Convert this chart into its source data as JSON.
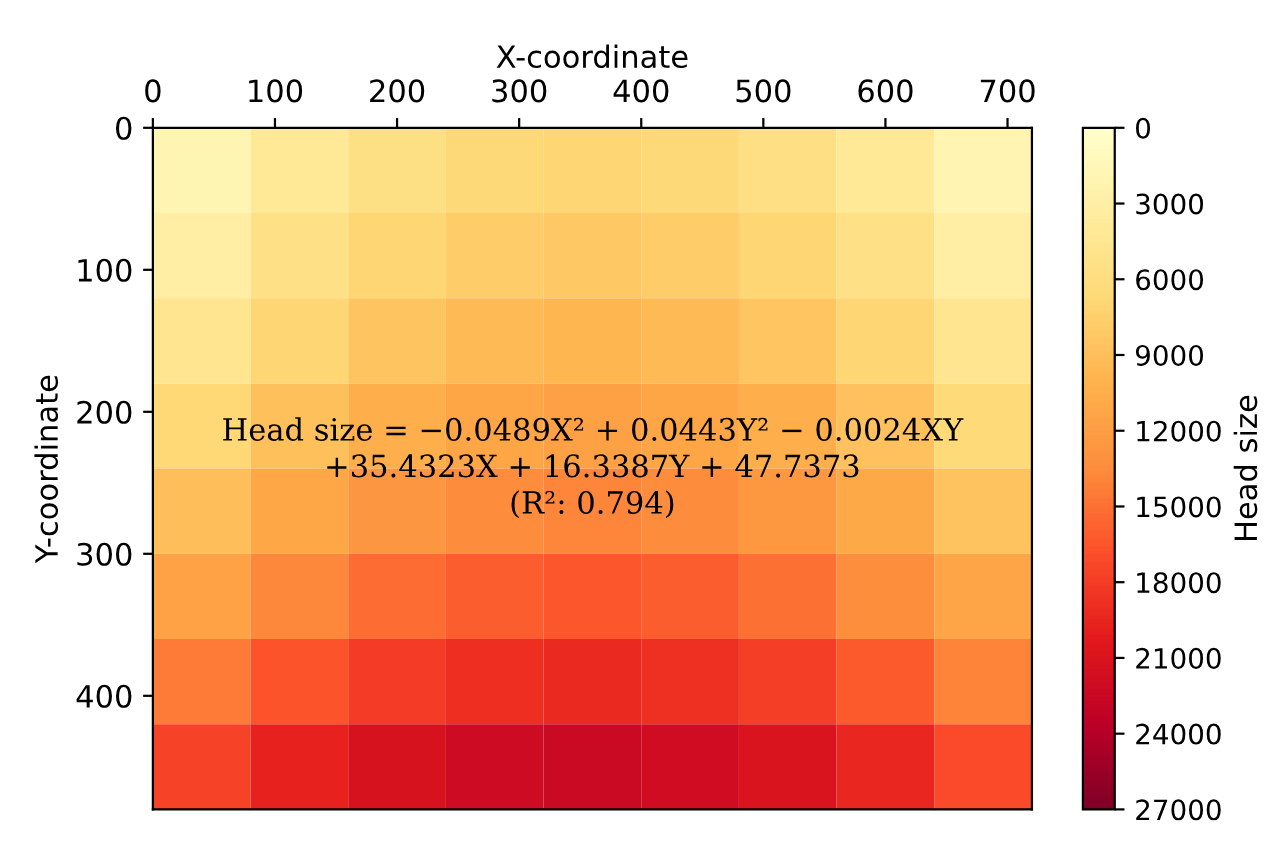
{
  "chart_data": {
    "type": "heatmap",
    "xlabel": "X-coordinate",
    "ylabel": "Y-coordinate",
    "clabel": "Head size",
    "x": [
      40,
      120,
      200,
      280,
      360,
      440,
      520,
      600,
      680
    ],
    "y": [
      30,
      90,
      150,
      210,
      270,
      330,
      390,
      450
    ],
    "cells": [
      [
        1914,
        4117,
        5694,
        6645,
        6970,
        6669,
        5743,
        4190,
        2012
      ],
      [
        3207,
        5399,
        6964,
        7904,
        8217,
        7905,
        6967,
        5402,
        3213
      ],
      [
        4820,
        7000,
        8553,
        9481,
        9783,
        9460,
        8510,
        6934,
        4733
      ],
      [
        6751,
        8920,
        10461,
        11378,
        11669,
        11333,
        10372,
        8785,
        6572
      ],
      [
        9002,
        11159,
        12689,
        13595,
        13874,
        13527,
        12554,
        10955,
        8731
      ],
      [
        11571,
        13717,
        15236,
        16129,
        16397,
        16039,
        15054,
        13444,
        11208
      ],
      [
        14460,
        16594,
        18101,
        18983,
        19239,
        18869,
        17873,
        16251,
        14005
      ],
      [
        17667,
        19789,
        21285,
        22156,
        22400,
        22019,
        21011,
        19378,
        17120
      ]
    ],
    "xlim": [
      0,
      720
    ],
    "xticks": [
      0,
      100,
      200,
      300,
      400,
      500,
      600,
      700
    ],
    "ylim": [
      480,
      0
    ],
    "yticks": [
      0,
      100,
      200,
      300,
      400
    ],
    "clim": [
      0,
      27000
    ],
    "cticks": [
      0,
      3000,
      6000,
      9000,
      12000,
      15000,
      18000,
      21000,
      24000,
      27000
    ],
    "annotations": [
      "Head size = −0.0489X² + 0.0443Y² − 0.0024XY\n+35.4323X + 16.3387Y + 47.7373\n(R²: 0.794)"
    ]
  }
}
